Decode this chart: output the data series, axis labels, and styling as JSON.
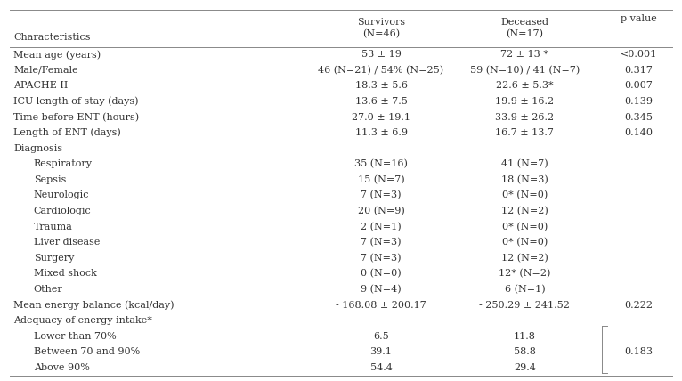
{
  "bg_color": "#ffffff",
  "header_col0": "Characteristics",
  "header_col1": "Survivors\n(N=46)",
  "header_col2": "Deceased\n(N=17)",
  "header_col3": "p value",
  "rows": [
    [
      "Mean age (years)",
      "53 ± 19",
      "72 ± 13 *",
      "<0.001",
      false
    ],
    [
      "Male/Female",
      "46 (N=21) / 54% (N=25)",
      "59 (N=10) / 41 (N=7)",
      "0.317",
      false
    ],
    [
      "APACHE II",
      "18.3 ± 5.6",
      "22.6 ± 5.3*",
      "0.007",
      false
    ],
    [
      "ICU length of stay (days)",
      "13.6 ± 7.5",
      "19.9 ± 16.2",
      "0.139",
      false
    ],
    [
      "Time before ENT (hours)",
      "27.0 ± 19.1",
      "33.9 ± 26.2",
      "0.345",
      false
    ],
    [
      "Length of ENT (days)",
      "11.3 ± 6.9",
      "16.7 ± 13.7",
      "0.140",
      false
    ],
    [
      "Diagnosis",
      "",
      "",
      "",
      false
    ],
    [
      "  Respiratory",
      "35 (N=16)",
      "41 (N=7)",
      "",
      true
    ],
    [
      "  Sepsis",
      "15 (N=7)",
      "18 (N=3)",
      "",
      true
    ],
    [
      "  Neurologic",
      "7 (N=3)",
      "0* (N=0)",
      "",
      true
    ],
    [
      "  Cardiologic",
      "20 (N=9)",
      "12 (N=2)",
      "",
      true
    ],
    [
      "  Trauma",
      "2 (N=1)",
      "0* (N=0)",
      "",
      true
    ],
    [
      "  Liver disease",
      "7 (N=3)",
      "0* (N=0)",
      "",
      true
    ],
    [
      "  Surgery",
      "7 (N=3)",
      "12 (N=2)",
      "",
      true
    ],
    [
      "  Mixed shock",
      "0 (N=0)",
      "12* (N=2)",
      "",
      true
    ],
    [
      "  Other",
      "9 (N=4)",
      "6 (N=1)",
      "",
      true
    ],
    [
      "Mean energy balance (kcal/day)",
      "- 168.08 ± 200.17",
      "- 250.29 ± 241.52",
      "0.222",
      false
    ],
    [
      "Adequacy of energy intake*",
      "",
      "",
      "",
      false
    ],
    [
      "  Lower than 70%",
      "6.5",
      "11.8",
      "",
      true
    ],
    [
      "  Between 70 and 90%",
      "39.1",
      "58.8",
      "",
      true
    ],
    [
      "  Above 90%",
      "54.4",
      "29.4",
      "",
      true
    ]
  ],
  "merged_pvalue_indices": [
    18,
    19,
    20
  ],
  "merged_pvalue_mid": 19,
  "merged_pvalue_val": "0.183",
  "text_color": "#333333",
  "line_color": "#888888",
  "font_size": 8.0,
  "figwidth": 7.66,
  "figheight": 4.28,
  "dpi": 100
}
